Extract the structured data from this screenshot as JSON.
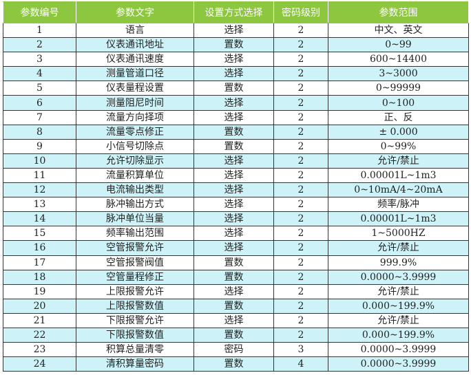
{
  "table": {
    "headers": [
      "参数编号",
      "参数文字",
      "设置方式选择",
      "密码级别",
      "参数范围"
    ],
    "rows": [
      [
        "1",
        "语言",
        "选择",
        "2",
        "中文、英文"
      ],
      [
        "2",
        "仪表通讯地址",
        "置数",
        "2",
        "0~99"
      ],
      [
        "3",
        "仪表通讯速度",
        "选择",
        "2",
        "600~14400"
      ],
      [
        "4",
        "测量管道口径",
        "选择",
        "2",
        "3~3000"
      ],
      [
        "5",
        "仪表量程设置",
        "置数",
        "2",
        "0~99999"
      ],
      [
        "6",
        "测量阻尼时间",
        "选择",
        "2",
        "0~100"
      ],
      [
        "7",
        "流量方向择项",
        "选择",
        "2",
        "正、反"
      ],
      [
        "8",
        "流量零点修正",
        "置数",
        "2",
        "± 0.000"
      ],
      [
        "9",
        "小信号切除点",
        "置数",
        "2",
        "0~99%"
      ],
      [
        "10",
        "允许切除显示",
        "选择",
        "2",
        "允许/禁止"
      ],
      [
        "11",
        "流量积算单位",
        "选择",
        "2",
        "0.00001L~1m3"
      ],
      [
        "12",
        "电流输出类型",
        "选择",
        "2",
        "0~10mA/4~20mA"
      ],
      [
        "13",
        "脉冲输出方式",
        "选择",
        "2",
        "频率/脉冲"
      ],
      [
        "14",
        "脉冲单位当量",
        "选择",
        "2",
        "0.00001L~1m3"
      ],
      [
        "15",
        "频率输出范围",
        "选择",
        "2",
        "1~5000HZ"
      ],
      [
        "16",
        "空管报警允许",
        "选择",
        "2",
        "允许/禁止"
      ],
      [
        "17",
        "空管报警阀值",
        "置数",
        "2",
        "999.9%"
      ],
      [
        "18",
        "空管量程修正",
        "置数",
        "2",
        "0.0000~3.9999"
      ],
      [
        "19",
        "上限报警允许",
        "选择",
        "2",
        "允许/禁止"
      ],
      [
        "20",
        "上限报警数值",
        "置数",
        "2",
        "0.000~199.9%"
      ],
      [
        "21",
        "下限报警允许",
        "选择",
        "2",
        "允许/禁止"
      ],
      [
        "22",
        "下限报警数值",
        "置数",
        "2",
        "0.000~199.9%"
      ],
      [
        "23",
        "积算总量清零",
        "密码",
        "3",
        "0.0000~3.9999"
      ],
      [
        "24",
        "清积算量密码",
        "置数",
        "4",
        "0.0000~3.9999"
      ]
    ]
  },
  "colors": {
    "header_bg": "#8dc63f",
    "alt_row_bg": "#cdf3f8"
  }
}
